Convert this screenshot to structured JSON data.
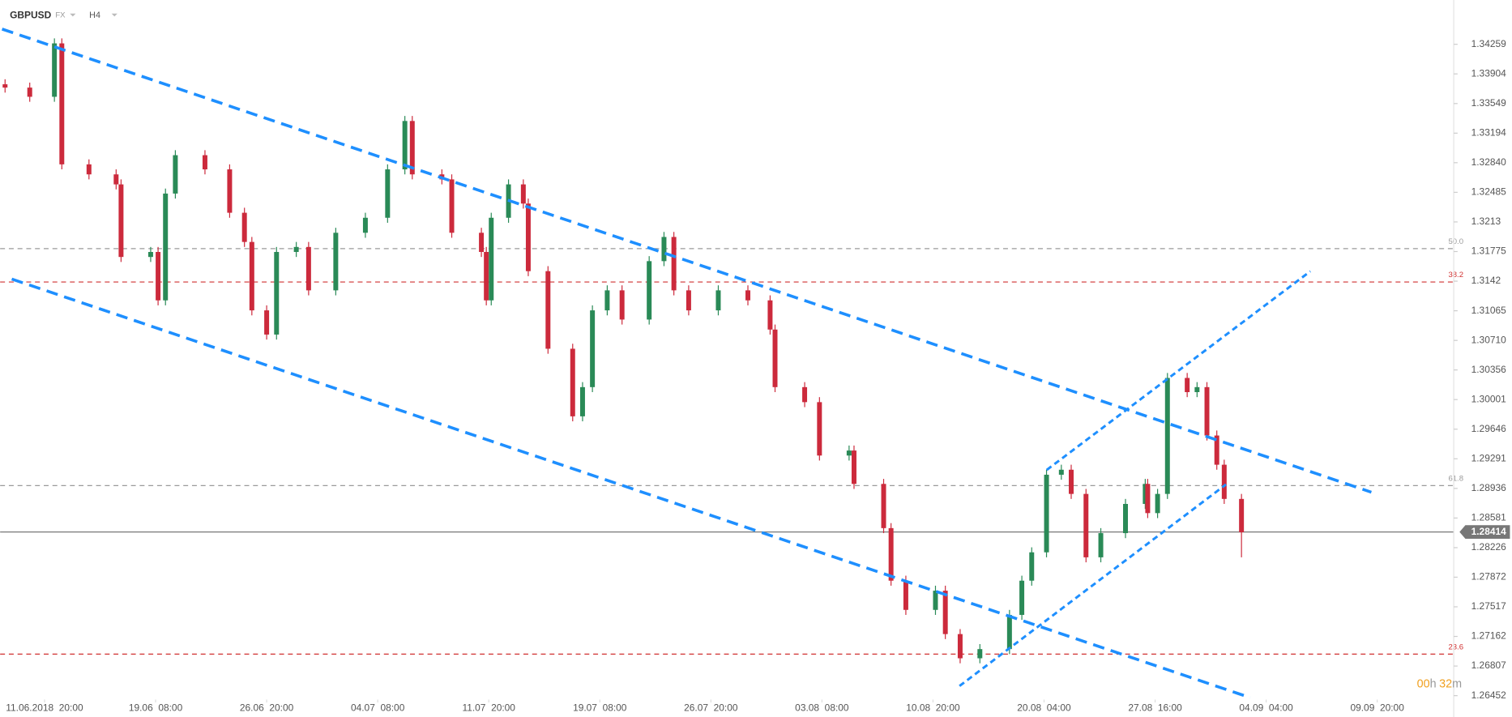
{
  "chart_data": {
    "type": "candlestick",
    "symbol": "GBPUSD",
    "market": "FX",
    "interval": "H4",
    "countdown": [
      "00",
      "h",
      "32",
      "m"
    ],
    "current_price": 1.28414,
    "up_color": "#2a8a57",
    "down_color": "#cc2a3c",
    "xlim": [
      -3,
      586
    ],
    "ylim": [
      1.2644,
      1.3479
    ],
    "xticks": [
      {
        "value": 15,
        "label": "11.06.2018  20:00"
      },
      {
        "value": 60,
        "label": "19.06  08:00"
      },
      {
        "value": 105,
        "label": "26.06  20:00"
      },
      {
        "value": 150,
        "label": "04.07  08:00"
      },
      {
        "value": 195,
        "label": "11.07  20:00"
      },
      {
        "value": 240,
        "label": "19.07  08:00"
      },
      {
        "value": 285,
        "label": "26.07  20:00"
      },
      {
        "value": 330,
        "label": "03.08  08:00"
      },
      {
        "value": 375,
        "label": "10.08  20:00"
      },
      {
        "value": 420,
        "label": "20.08  04:00"
      },
      {
        "value": 465,
        "label": "27.08  16:00"
      },
      {
        "value": 510,
        "label": "04.09  04:00"
      },
      {
        "value": 555,
        "label": "09.09  20:00"
      }
    ],
    "yticks": [
      1.34259,
      1.33904,
      1.33549,
      1.33194,
      {
        "value": 1.3284,
        "label": "1.32840"
      },
      1.32485,
      1.3213,
      1.31775,
      1.3142,
      1.31065,
      {
        "value": 1.3071,
        "label": "1.30710"
      },
      1.30356,
      1.30001,
      1.29646,
      1.29291,
      1.28936,
      1.28581,
      1.28226,
      1.27872,
      1.27517,
      1.27162,
      1.26807,
      1.26452
    ],
    "levels": [
      {
        "label": "50.0",
        "value": 1.3181,
        "color": "#9a9a9a"
      },
      {
        "label": "38.2",
        "value": 1.3141,
        "color": "#d03030"
      },
      {
        "label": "61.8",
        "value": 1.2897,
        "color": "#9a9a9a"
      },
      {
        "label": "23.6",
        "value": 1.2695,
        "color": "#d03030"
      }
    ],
    "x": [
      -1,
      9,
      19,
      22,
      33,
      44,
      46,
      58,
      61,
      64,
      68,
      80,
      90,
      96,
      99,
      105,
      109,
      117,
      122,
      133,
      145,
      154,
      161,
      164,
      176,
      180,
      192,
      194,
      196,
      203,
      209,
      211,
      219,
      229,
      233,
      237,
      243,
      249,
      260,
      266,
      270,
      276,
      288,
      300,
      309,
      311,
      323,
      329,
      341,
      343,
      355,
      358,
      364,
      376,
      380,
      386,
      394,
      406,
      411,
      415,
      421,
      427,
      431,
      437,
      443,
      453,
      461,
      462,
      466,
      470,
      478,
      482,
      486,
      490,
      493,
      500
    ],
    "open": [
      1.3378,
      1.3374,
      1.3363,
      1.3427,
      1.3282,
      1.327,
      1.3258,
      1.3171,
      1.3177,
      1.3119,
      1.3247,
      1.3293,
      1.3276,
      1.3224,
      1.3189,
      1.3107,
      1.3078,
      1.3177,
      1.3183,
      1.3131,
      1.32,
      1.3218,
      1.3276,
      1.3334,
      1.327,
      1.3264,
      1.32,
      1.3177,
      1.3119,
      1.3218,
      1.3258,
      1.3235,
      1.3154,
      1.3061,
      1.298,
      1.3015,
      1.3107,
      1.3131,
      1.3096,
      1.3166,
      1.3195,
      1.3131,
      1.3107,
      1.3131,
      1.3119,
      1.3084,
      1.3015,
      1.2997,
      1.2933,
      1.2939,
      1.2899,
      1.2846,
      1.2783,
      1.2748,
      1.2771,
      1.2719,
      1.269,
      1.2701,
      1.2742,
      1.2783,
      1.2817,
      1.291,
      1.2916,
      1.2887,
      1.2811,
      1.284,
      1.2875,
      1.2899,
      1.2864,
      1.2887,
      1.3026,
      1.3009,
      1.3015,
      1.2957,
      1.2922,
      1.2881
    ],
    "high": [
      1.3384,
      1.338,
      1.3433,
      1.3433,
      1.3288,
      1.3276,
      1.3264,
      1.3183,
      1.3183,
      1.3253,
      1.3299,
      1.3299,
      1.3282,
      1.323,
      1.3195,
      1.3113,
      1.3183,
      1.3189,
      1.3189,
      1.3206,
      1.3224,
      1.3282,
      1.334,
      1.334,
      1.3276,
      1.327,
      1.3206,
      1.3183,
      1.3224,
      1.3264,
      1.3264,
      1.3241,
      1.316,
      1.3067,
      1.3021,
      1.3113,
      1.3137,
      1.3137,
      1.3172,
      1.3201,
      1.3201,
      1.3137,
      1.3137,
      1.3137,
      1.3125,
      1.309,
      1.3021,
      1.3003,
      1.2945,
      1.2945,
      1.2905,
      1.2852,
      1.2789,
      1.2777,
      1.2777,
      1.2725,
      1.2707,
      1.2748,
      1.2789,
      1.2823,
      1.2916,
      1.2922,
      1.2922,
      1.2893,
      1.2846,
      1.2881,
      1.2905,
      1.2905,
      1.2893,
      1.3032,
      1.3032,
      1.3021,
      1.3021,
      1.2963,
      1.2928,
      1.2887
    ],
    "low": [
      1.3368,
      1.3357,
      1.3357,
      1.3276,
      1.3264,
      1.3252,
      1.3165,
      1.3165,
      1.3113,
      1.3113,
      1.3241,
      1.327,
      1.3218,
      1.3183,
      1.3101,
      1.3072,
      1.3072,
      1.3171,
      1.3125,
      1.3125,
      1.3194,
      1.3212,
      1.327,
      1.3264,
      1.3258,
      1.3194,
      1.3171,
      1.3113,
      1.3113,
      1.3212,
      1.3229,
      1.3148,
      1.3055,
      1.2974,
      1.2974,
      1.3009,
      1.3101,
      1.309,
      1.309,
      1.316,
      1.3125,
      1.3101,
      1.3101,
      1.3113,
      1.3078,
      1.3009,
      1.2991,
      1.2927,
      1.2927,
      1.2893,
      1.284,
      1.2777,
      1.2742,
      1.2742,
      1.2713,
      1.2684,
      1.2684,
      1.2695,
      1.2736,
      1.2777,
      1.2811,
      1.2904,
      1.2881,
      1.2805,
      1.2805,
      1.2834,
      1.2869,
      1.2858,
      1.2858,
      1.2881,
      1.3003,
      1.3003,
      1.2951,
      1.2916,
      1.2875,
      1.2811
    ],
    "close": [
      1.3374,
      1.3363,
      1.3427,
      1.3282,
      1.327,
      1.3258,
      1.3171,
      1.3177,
      1.3119,
      1.3247,
      1.3293,
      1.3276,
      1.3224,
      1.3189,
      1.3107,
      1.3078,
      1.3177,
      1.3183,
      1.3131,
      1.32,
      1.3218,
      1.3276,
      1.3334,
      1.327,
      1.3264,
      1.32,
      1.3177,
      1.3119,
      1.3218,
      1.3258,
      1.3235,
      1.3154,
      1.3061,
      1.298,
      1.3015,
      1.3107,
      1.3131,
      1.3096,
      1.3166,
      1.3195,
      1.3131,
      1.3107,
      1.3131,
      1.3119,
      1.3084,
      1.3015,
      1.2997,
      1.2933,
      1.2939,
      1.2899,
      1.2846,
      1.2783,
      1.2748,
      1.2771,
      1.2719,
      1.269,
      1.2701,
      1.2742,
      1.2783,
      1.2817,
      1.291,
      1.2916,
      1.2887,
      1.2811,
      1.284,
      1.2875,
      1.2899,
      1.2864,
      1.2887,
      1.3026,
      1.3009,
      1.3015,
      1.2957,
      1.2922,
      1.2881,
      1.2841
    ]
  }
}
